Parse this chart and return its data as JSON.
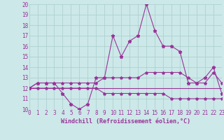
{
  "xlabel": "Windchill (Refroidissement éolien,°C)",
  "x": [
    0,
    1,
    2,
    3,
    4,
    5,
    6,
    7,
    8,
    9,
    10,
    11,
    12,
    13,
    14,
    15,
    16,
    17,
    18,
    19,
    20,
    21,
    22,
    23
  ],
  "line1": [
    12,
    12.5,
    12.5,
    12.5,
    11.5,
    10.5,
    10,
    10.5,
    13,
    13,
    17,
    15,
    16.5,
    17,
    20,
    17.5,
    16,
    16,
    15.5,
    12.5,
    12.5,
    13,
    14,
    11.5
  ],
  "line2": [
    12,
    12.5,
    12.5,
    12.5,
    12.5,
    12.5,
    12.5,
    12.5,
    12.5,
    13,
    13,
    13,
    13,
    13,
    13.5,
    13.5,
    13.5,
    13.5,
    13.5,
    13,
    12.5,
    12.5,
    13.5,
    12.5
  ],
  "line3": [
    12,
    12,
    12,
    12,
    12,
    12,
    12,
    12,
    12,
    12,
    12,
    12,
    12,
    12,
    12,
    12,
    12,
    12,
    12,
    12,
    12,
    12,
    12,
    12
  ],
  "line4": [
    12,
    12,
    12,
    12,
    12,
    12,
    12,
    12,
    12,
    11.5,
    11.5,
    11.5,
    11.5,
    11.5,
    11.5,
    11.5,
    11.5,
    11,
    11,
    11,
    11,
    11,
    11,
    11
  ],
  "color": "#993399",
  "bg_color": "#cce8e8",
  "grid_color": "#aacccc",
  "ylim": [
    10,
    20
  ],
  "xlim": [
    0,
    23
  ]
}
